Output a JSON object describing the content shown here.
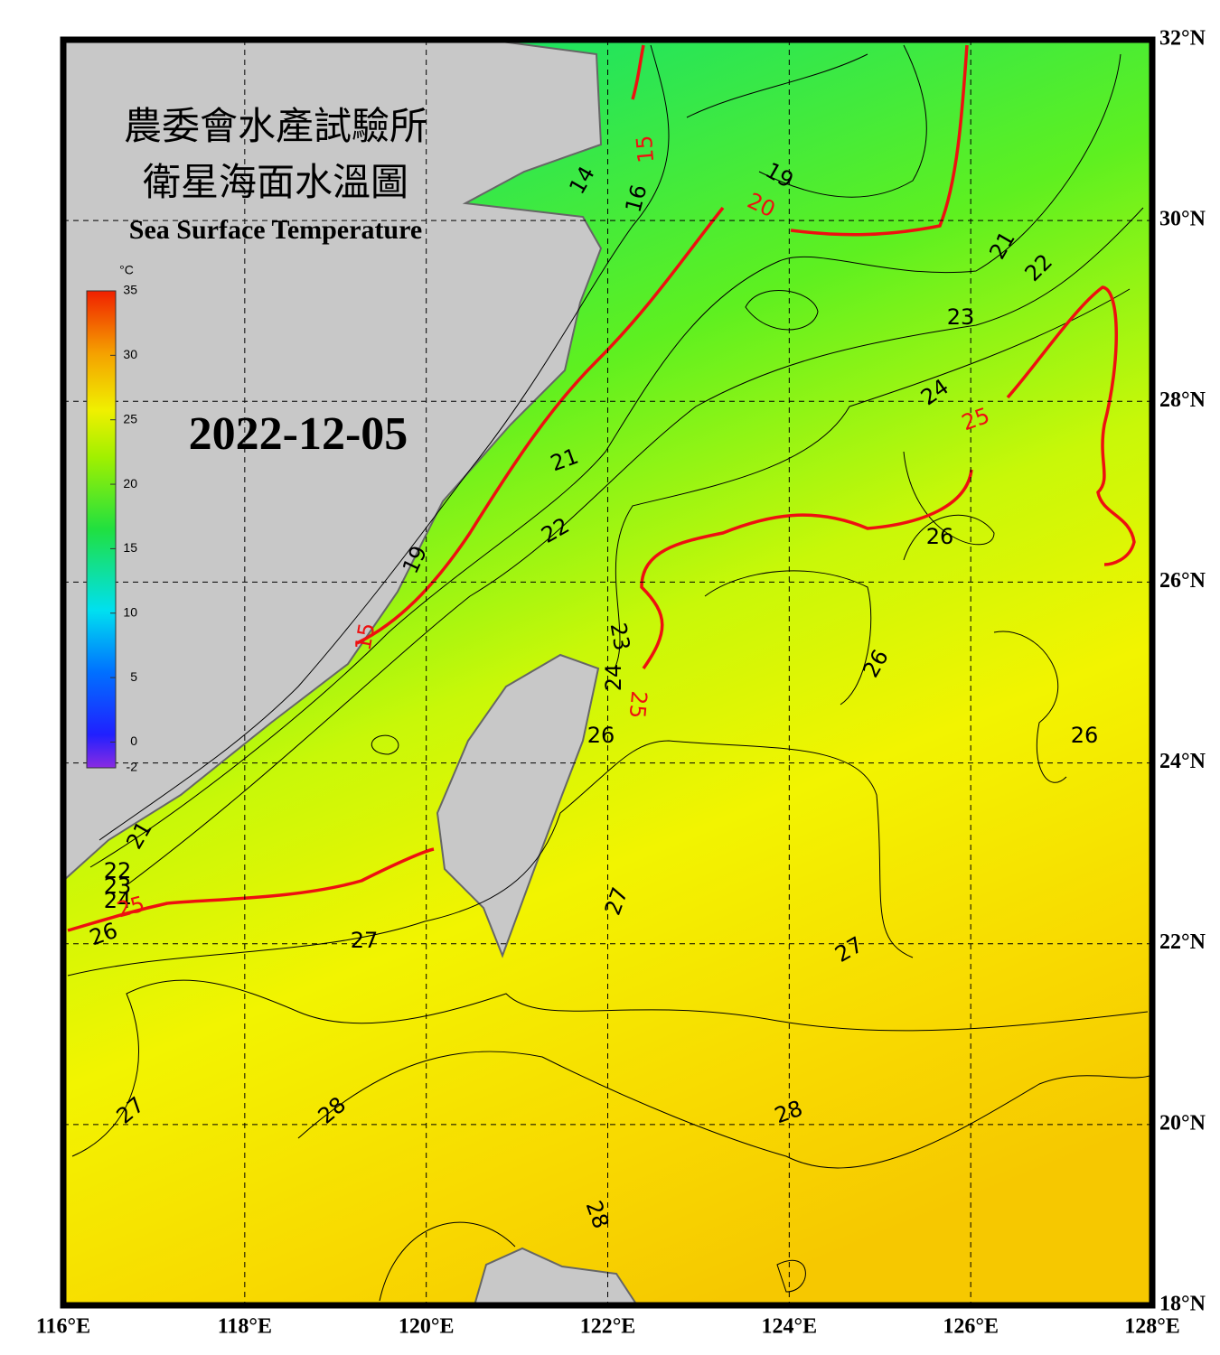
{
  "header": {
    "title_line1": "農委會水產試驗所",
    "title_line2": "衛星海面水溫圖",
    "subtitle": "Sea Surface Temperature",
    "date": "2022-12-05"
  },
  "colorbar": {
    "unit": "°C",
    "range": [
      -2,
      35
    ],
    "ticks": [
      35,
      30,
      25,
      20,
      15,
      10,
      5,
      0,
      -2
    ]
  },
  "map": {
    "lon_range": [
      116,
      128
    ],
    "lat_range": [
      18,
      32
    ],
    "lon_ticks": [
      {
        "value": 116,
        "label": "116°E"
      },
      {
        "value": 118,
        "label": "118°E"
      },
      {
        "value": 120,
        "label": "120°E"
      },
      {
        "value": 122,
        "label": "122°E"
      },
      {
        "value": 124,
        "label": "124°E"
      },
      {
        "value": 126,
        "label": "126°E"
      },
      {
        "value": 128,
        "label": "128°E"
      }
    ],
    "lat_ticks": [
      {
        "value": 32,
        "label": "32°N"
      },
      {
        "value": 30,
        "label": "30°N"
      },
      {
        "value": 28,
        "label": "28°N"
      },
      {
        "value": 26,
        "label": "26°N"
      },
      {
        "value": 24,
        "label": "24°N"
      },
      {
        "value": 22,
        "label": "22°N"
      },
      {
        "value": 20,
        "label": "20°N"
      },
      {
        "value": 18,
        "label": "18°N"
      }
    ],
    "contour_labels": [
      14,
      15,
      16,
      19,
      20,
      21,
      22,
      23,
      24,
      25,
      21,
      22,
      26,
      19,
      15,
      23,
      24,
      25,
      26,
      26,
      26,
      21,
      22,
      23,
      24,
      25,
      26,
      27,
      27,
      27,
      27,
      28,
      28,
      28
    ]
  }
}
